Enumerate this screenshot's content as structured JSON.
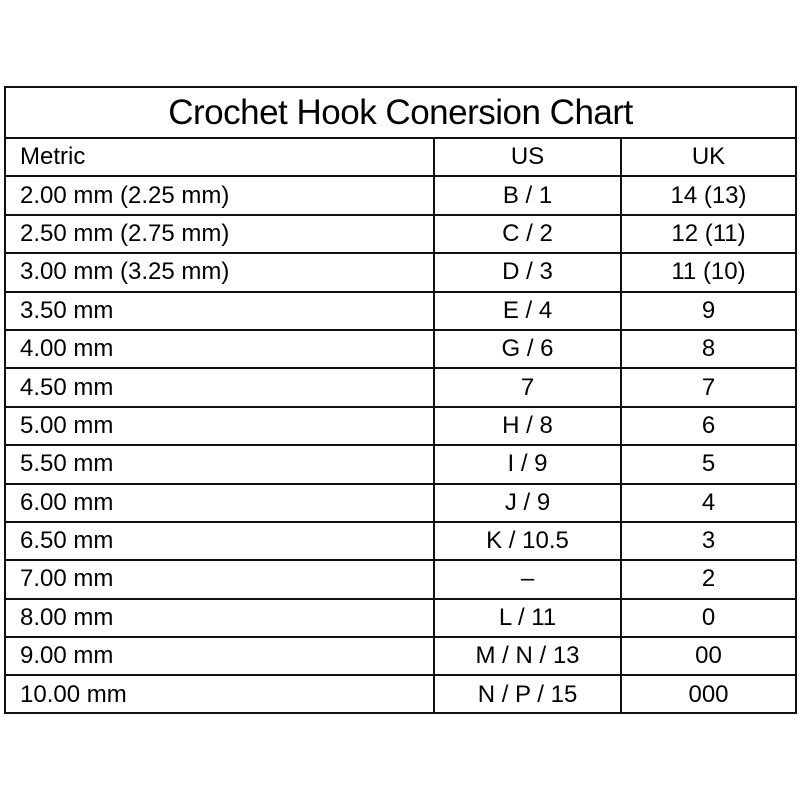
{
  "title": "Crochet Hook Conersion Chart",
  "headers": [
    "Metric",
    "US",
    "UK"
  ],
  "rows": [
    [
      "2.00 mm (2.25 mm)",
      "B / 1",
      "14 (13)"
    ],
    [
      "2.50 mm (2.75 mm)",
      "C / 2",
      "12 (11)"
    ],
    [
      "3.00 mm (3.25 mm)",
      "D / 3",
      "11 (10)"
    ],
    [
      "3.50 mm",
      "E / 4",
      "9"
    ],
    [
      "4.00 mm",
      "G / 6",
      "8"
    ],
    [
      "4.50 mm",
      "7",
      "7"
    ],
    [
      "5.00 mm",
      "H / 8",
      "6"
    ],
    [
      "5.50 mm",
      "I / 9",
      "5"
    ],
    [
      "6.00 mm",
      "J / 9",
      "4"
    ],
    [
      "6.50 mm",
      "K / 10.5",
      "3"
    ],
    [
      "7.00 mm",
      "–",
      "2"
    ],
    [
      "8.00 mm",
      "L / 11",
      "0"
    ],
    [
      "9.00 mm",
      "M / N / 13",
      "00"
    ],
    [
      "10.00 mm",
      "N / P / 15",
      "000"
    ]
  ]
}
